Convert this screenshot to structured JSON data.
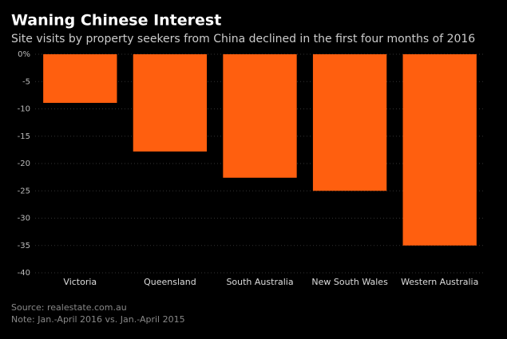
{
  "chart_data": {
    "type": "bar",
    "title": "Waning Chinese Interest",
    "subtitle": "Site visits by property seekers from China declined in the first four months of 2016",
    "categories": [
      "Victoria",
      "Queensland",
      "South Australia",
      "New South Wales",
      "Western Australia"
    ],
    "values": [
      -8.9,
      -17.8,
      -22.6,
      -25,
      -35
    ],
    "color": "#ff5f0f",
    "ylim": [
      -40,
      0
    ],
    "yticks": [
      {
        "value": 0,
        "label": "0%"
      },
      -5,
      -10,
      -15,
      -20,
      -25,
      -30,
      -35,
      -40
    ],
    "grid": true,
    "source": "Source: realestate.com.au",
    "note": "Note: Jan.-April 2016 vs. Jan.-April 2015"
  }
}
